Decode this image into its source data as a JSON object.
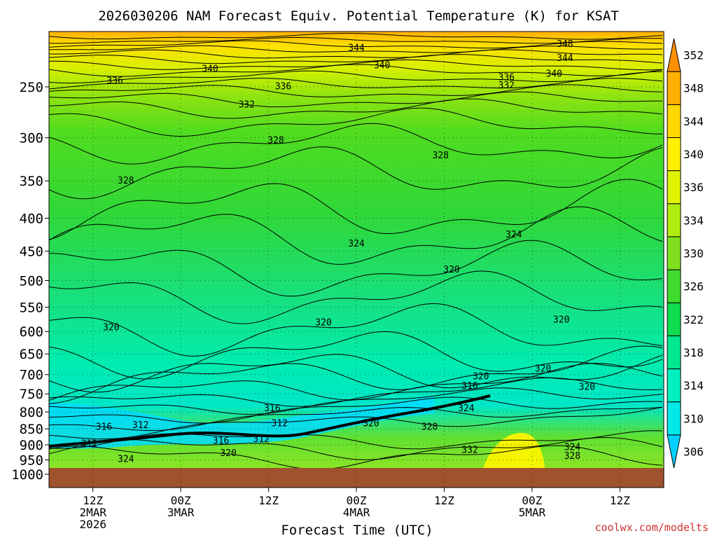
{
  "chart_data": {
    "type": "contour",
    "title": "2026030206 NAM Forecast Equiv. Potential Temperature (K) for KSAT",
    "xlabel": "Forecast Time (UTC)",
    "ylabel": "",
    "credit": "coolwx.com/modelts",
    "x_range_hours": [
      0,
      84
    ],
    "y_range_hpa": [
      200,
      1000
    ],
    "y_ticks": [
      250,
      300,
      350,
      400,
      450,
      500,
      550,
      600,
      650,
      700,
      750,
      800,
      850,
      900,
      950,
      1000
    ],
    "x_ticks": [
      {
        "hour": 6,
        "line1": "12Z",
        "line2": "2MAR",
        "line3": "2026"
      },
      {
        "hour": 18,
        "line1": "00Z",
        "line2": "3MAR",
        "line3": ""
      },
      {
        "hour": 30,
        "line1": "12Z",
        "line2": "",
        "line3": ""
      },
      {
        "hour": 42,
        "line1": "00Z",
        "line2": "4MAR",
        "line3": ""
      },
      {
        "hour": 54,
        "line1": "12Z",
        "line2": "",
        "line3": ""
      },
      {
        "hour": 66,
        "line1": "00Z",
        "line2": "5MAR",
        "line3": ""
      },
      {
        "hour": 78,
        "line1": "12Z",
        "line2": "",
        "line3": ""
      }
    ],
    "colorbar": {
      "levels": [
        306,
        310,
        314,
        318,
        322,
        326,
        330,
        334,
        336,
        340,
        344,
        348,
        352
      ],
      "colors": [
        "#00d0ff",
        "#00e8e8",
        "#00f0c0",
        "#00e890",
        "#10dc50",
        "#40dc30",
        "#80e020",
        "#b0ec10",
        "#e0f400",
        "#fff000",
        "#ffd800",
        "#ffb000",
        "#ff9000"
      ]
    },
    "contour_labels": [
      {
        "text": "344",
        "hour": 42.0,
        "p": 217
      },
      {
        "text": "348",
        "hour": 70.5,
        "p": 214
      },
      {
        "text": "344",
        "hour": 70.5,
        "p": 225
      },
      {
        "text": "340",
        "hour": 22.0,
        "p": 234
      },
      {
        "text": "340",
        "hour": 45.5,
        "p": 231
      },
      {
        "text": "340",
        "hour": 69.0,
        "p": 238
      },
      {
        "text": "336",
        "hour": 9.0,
        "p": 244
      },
      {
        "text": "336",
        "hour": 32.0,
        "p": 249
      },
      {
        "text": "336",
        "hour": 62.5,
        "p": 241
      },
      {
        "text": "332",
        "hour": 62.5,
        "p": 248
      },
      {
        "text": "332",
        "hour": 27.0,
        "p": 266
      },
      {
        "text": "328",
        "hour": 31.0,
        "p": 302
      },
      {
        "text": "328",
        "hour": 53.5,
        "p": 319
      },
      {
        "text": "328",
        "hour": 10.5,
        "p": 349
      },
      {
        "text": "324",
        "hour": 42.0,
        "p": 437
      },
      {
        "text": "324",
        "hour": 63.5,
        "p": 423
      },
      {
        "text": "320",
        "hour": 55.0,
        "p": 480
      },
      {
        "text": "320",
        "hour": 37.5,
        "p": 580
      },
      {
        "text": "320",
        "hour": 8.5,
        "p": 590
      },
      {
        "text": "320",
        "hour": 70.0,
        "p": 574
      },
      {
        "text": "320",
        "hour": 67.5,
        "p": 684
      },
      {
        "text": "320",
        "hour": 59.0,
        "p": 703
      },
      {
        "text": "316",
        "hour": 57.5,
        "p": 727
      },
      {
        "text": "320",
        "hour": 73.5,
        "p": 730
      },
      {
        "text": "316",
        "hour": 30.5,
        "p": 788
      },
      {
        "text": "324",
        "hour": 57.0,
        "p": 788
      },
      {
        "text": "316",
        "hour": 7.5,
        "p": 842
      },
      {
        "text": "312",
        "hour": 12.5,
        "p": 837
      },
      {
        "text": "312",
        "hour": 31.5,
        "p": 832
      },
      {
        "text": "320",
        "hour": 44.0,
        "p": 832
      },
      {
        "text": "328",
        "hour": 52.0,
        "p": 842
      },
      {
        "text": "312",
        "hour": 5.5,
        "p": 894
      },
      {
        "text": "316",
        "hour": 23.5,
        "p": 886
      },
      {
        "text": "312",
        "hour": 29.0,
        "p": 880
      },
      {
        "text": "320",
        "hour": 24.5,
        "p": 925
      },
      {
        "text": "332",
        "hour": 57.5,
        "p": 915
      },
      {
        "text": "324",
        "hour": 71.5,
        "p": 906
      },
      {
        "text": "328",
        "hour": 71.5,
        "p": 935
      },
      {
        "text": "324",
        "hour": 10.5,
        "p": 945
      }
    ]
  }
}
